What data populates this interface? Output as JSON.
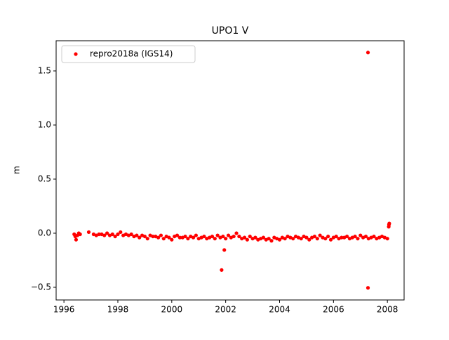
{
  "chart_data": {
    "type": "scatter",
    "title": "UPO1 V",
    "ylabel": "m",
    "legend_loc": "upper-left",
    "series": [
      {
        "name": "repro2018a (IGS14)",
        "color": "#ff0000",
        "x": [
          1996.38,
          1996.42,
          1996.45,
          1996.5,
          1996.55,
          1996.6,
          1996.92,
          1997.1,
          1997.2,
          1997.3,
          1997.4,
          1997.5,
          1997.6,
          1997.7,
          1997.8,
          1997.9,
          1998.0,
          1998.1,
          1998.2,
          1998.3,
          1998.4,
          1998.5,
          1998.6,
          1998.7,
          1998.8,
          1998.9,
          1999.0,
          1999.1,
          1999.2,
          1999.3,
          1999.4,
          1999.5,
          1999.6,
          1999.7,
          1999.8,
          1999.9,
          2000.0,
          2000.1,
          2000.2,
          2000.3,
          2000.4,
          2000.5,
          2000.6,
          2000.7,
          2000.8,
          2000.9,
          2001.0,
          2001.1,
          2001.2,
          2001.3,
          2001.4,
          2001.5,
          2001.6,
          2001.7,
          2001.8,
          2001.9,
          2002.0,
          2002.1,
          2002.2,
          2002.3,
          2002.4,
          2002.5,
          2002.6,
          2002.7,
          2002.8,
          2002.9,
          2003.0,
          2003.1,
          2003.2,
          2003.3,
          2003.4,
          2003.5,
          2003.6,
          2003.7,
          2003.8,
          2003.9,
          2004.0,
          2004.1,
          2004.2,
          2004.3,
          2004.4,
          2004.5,
          2004.6,
          2004.7,
          2004.8,
          2004.9,
          2005.0,
          2005.1,
          2005.2,
          2005.3,
          2005.4,
          2005.5,
          2005.6,
          2005.7,
          2005.8,
          2005.9,
          2006.0,
          2006.1,
          2006.2,
          2006.3,
          2006.4,
          2006.5,
          2006.6,
          2006.7,
          2006.8,
          2006.9,
          2007.0,
          2007.1,
          2007.2,
          2007.3,
          2007.4,
          2007.5,
          2007.6,
          2007.7,
          2007.8,
          2007.9,
          2008.0,
          2001.85,
          2001.95,
          2007.28,
          2007.28,
          2008.05,
          2008.06,
          2008.07
        ],
        "values": [
          -0.01,
          -0.03,
          -0.06,
          -0.02,
          0.0,
          -0.01,
          0.01,
          -0.01,
          -0.02,
          -0.01,
          -0.01,
          -0.02,
          0.0,
          -0.02,
          -0.01,
          -0.03,
          -0.01,
          0.01,
          -0.02,
          -0.01,
          -0.02,
          -0.01,
          -0.03,
          -0.02,
          -0.04,
          -0.02,
          -0.03,
          -0.05,
          -0.02,
          -0.03,
          -0.03,
          -0.04,
          -0.02,
          -0.05,
          -0.03,
          -0.04,
          -0.06,
          -0.03,
          -0.02,
          -0.04,
          -0.04,
          -0.03,
          -0.05,
          -0.03,
          -0.04,
          -0.02,
          -0.05,
          -0.04,
          -0.03,
          -0.05,
          -0.04,
          -0.03,
          -0.05,
          -0.02,
          -0.04,
          -0.03,
          -0.05,
          -0.02,
          -0.04,
          -0.03,
          0.0,
          -0.03,
          -0.05,
          -0.04,
          -0.06,
          -0.03,
          -0.05,
          -0.04,
          -0.06,
          -0.05,
          -0.04,
          -0.06,
          -0.05,
          -0.07,
          -0.04,
          -0.05,
          -0.06,
          -0.04,
          -0.05,
          -0.03,
          -0.04,
          -0.05,
          -0.03,
          -0.04,
          -0.05,
          -0.03,
          -0.04,
          -0.06,
          -0.04,
          -0.03,
          -0.05,
          -0.02,
          -0.04,
          -0.05,
          -0.03,
          -0.06,
          -0.04,
          -0.03,
          -0.05,
          -0.04,
          -0.04,
          -0.03,
          -0.05,
          -0.04,
          -0.03,
          -0.05,
          -0.02,
          -0.04,
          -0.03,
          -0.05,
          -0.04,
          -0.03,
          -0.05,
          -0.04,
          -0.03,
          -0.04,
          -0.05,
          -0.34,
          -0.155,
          1.67,
          -0.505,
          0.06,
          0.08,
          0.09
        ]
      }
    ],
    "xlim": [
      1995.71,
      2008.62
    ],
    "xticks": [
      1996,
      1998,
      2000,
      2002,
      2004,
      2006,
      2008
    ],
    "ylim": [
      -0.617,
      1.779
    ],
    "yticks": [
      {
        "value": -0.5,
        "label": "−0.5"
      },
      {
        "value": 0,
        "label": "0.0"
      },
      0.5,
      {
        "value": 1,
        "label": "1.0"
      },
      1.5
    ]
  }
}
